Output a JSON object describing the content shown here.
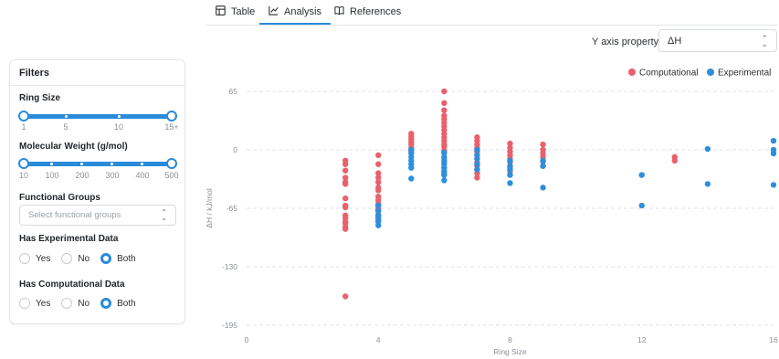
{
  "tabs": [
    {
      "label": "Table",
      "icon": "table-icon",
      "active": false
    },
    {
      "label": "Analysis",
      "icon": "chart-icon",
      "active": true
    },
    {
      "label": "References",
      "icon": "book-icon",
      "active": false
    }
  ],
  "y_axis_select": {
    "label": "Y axis property:",
    "value": "ΔH"
  },
  "filters": {
    "title": "Filters",
    "ring_size": {
      "label": "Ring Size",
      "ticks": [
        "1",
        "5",
        "10",
        "15+"
      ],
      "range": [
        1,
        15
      ]
    },
    "molecular_weight": {
      "label": "Molecular Weight (g/mol)",
      "ticks": [
        "10",
        "100",
        "200",
        "300",
        "400",
        "500"
      ],
      "range": [
        10,
        500
      ]
    },
    "functional_groups": {
      "label": "Functional Groups",
      "placeholder": "Select functional groups"
    },
    "has_experimental": {
      "label": "Has Experimental Data",
      "options": [
        "Yes",
        "No",
        "Both"
      ],
      "selected": "Both"
    },
    "has_computational": {
      "label": "Has Computational Data",
      "options": [
        "Yes",
        "No",
        "Both"
      ],
      "selected": "Both"
    }
  },
  "colors": {
    "accent": "#2a8bd8",
    "computational": "#e8616b",
    "experimental": "#2e8fdc"
  },
  "chart_data": {
    "type": "scatter",
    "xlabel": "Ring Size",
    "ylabel": "ΔH / kJ/mol",
    "xlim": [
      0,
      16
    ],
    "ylim": [
      -195,
      65
    ],
    "xticks": [
      0,
      4,
      8,
      12,
      16
    ],
    "yticks": [
      65,
      0,
      -65,
      -130,
      -195
    ],
    "grid": "horizontal dashed",
    "legend": "top-right",
    "series": [
      {
        "name": "Computational",
        "points": [
          [
            3,
            -12
          ],
          [
            3,
            -16
          ],
          [
            3,
            -23
          ],
          [
            3,
            -31
          ],
          [
            3,
            -36
          ],
          [
            3,
            -38
          ],
          [
            3,
            -54
          ],
          [
            3,
            -62
          ],
          [
            3,
            -64
          ],
          [
            3,
            -73
          ],
          [
            3,
            -76
          ],
          [
            3,
            -80
          ],
          [
            3,
            -82
          ],
          [
            3,
            -86
          ],
          [
            3,
            -88
          ],
          [
            3,
            -163
          ],
          [
            4,
            -6
          ],
          [
            4,
            -16
          ],
          [
            4,
            -26
          ],
          [
            4,
            -31
          ],
          [
            4,
            -36
          ],
          [
            4,
            -42
          ],
          [
            4,
            -45
          ],
          [
            4,
            -52
          ],
          [
            4,
            -56
          ],
          [
            4,
            -60
          ],
          [
            4,
            -63
          ],
          [
            4,
            -66
          ],
          [
            4,
            -68
          ],
          [
            4,
            -72
          ],
          [
            4,
            -75
          ],
          [
            4,
            -78
          ],
          [
            5,
            -2
          ],
          [
            5,
            2
          ],
          [
            5,
            6
          ],
          [
            5,
            9
          ],
          [
            5,
            12
          ],
          [
            5,
            15
          ],
          [
            5,
            18
          ],
          [
            6,
            65
          ],
          [
            6,
            52
          ],
          [
            6,
            44
          ],
          [
            6,
            38
          ],
          [
            6,
            34
          ],
          [
            6,
            30
          ],
          [
            6,
            26
          ],
          [
            6,
            22
          ],
          [
            6,
            18
          ],
          [
            6,
            14
          ],
          [
            6,
            10
          ],
          [
            6,
            6
          ],
          [
            6,
            3
          ],
          [
            6,
            -1
          ],
          [
            6,
            -4
          ],
          [
            6,
            -9
          ],
          [
            6,
            -14
          ],
          [
            6,
            -20
          ],
          [
            6,
            -26
          ],
          [
            7,
            14
          ],
          [
            7,
            10
          ],
          [
            7,
            6
          ],
          [
            7,
            2
          ],
          [
            7,
            -2
          ],
          [
            7,
            -6
          ],
          [
            7,
            -10
          ],
          [
            7,
            -14
          ],
          [
            7,
            -18
          ],
          [
            7,
            -22
          ],
          [
            7,
            -26
          ],
          [
            7,
            -31
          ],
          [
            8,
            7
          ],
          [
            8,
            2
          ],
          [
            8,
            -2
          ],
          [
            8,
            -6
          ],
          [
            8,
            -10
          ],
          [
            8,
            -14
          ],
          [
            8,
            -19
          ],
          [
            8,
            -24
          ],
          [
            9,
            6
          ],
          [
            9,
            0
          ],
          [
            9,
            -4
          ],
          [
            9,
            -8
          ],
          [
            9,
            -13
          ],
          [
            9,
            -18
          ],
          [
            13,
            -8
          ],
          [
            13,
            -12
          ]
        ]
      },
      {
        "name": "Experimental",
        "points": [
          [
            4,
            -62
          ],
          [
            4,
            -68
          ],
          [
            4,
            -73
          ],
          [
            4,
            -76
          ],
          [
            4,
            -80
          ],
          [
            4,
            -84
          ],
          [
            5,
            0
          ],
          [
            5,
            -4
          ],
          [
            5,
            -8
          ],
          [
            5,
            -12
          ],
          [
            5,
            -16
          ],
          [
            5,
            -20
          ],
          [
            5,
            -32
          ],
          [
            6,
            -3
          ],
          [
            6,
            -8
          ],
          [
            6,
            -12
          ],
          [
            6,
            -16
          ],
          [
            6,
            -20
          ],
          [
            6,
            -24
          ],
          [
            6,
            -28
          ],
          [
            6,
            -34
          ],
          [
            7,
            0
          ],
          [
            7,
            -6
          ],
          [
            7,
            -10
          ],
          [
            7,
            -16
          ],
          [
            7,
            -22
          ],
          [
            8,
            -12
          ],
          [
            8,
            -18
          ],
          [
            8,
            -22
          ],
          [
            8,
            -28
          ],
          [
            8,
            -37
          ],
          [
            9,
            -12
          ],
          [
            9,
            -18
          ],
          [
            9,
            -42
          ],
          [
            12,
            -28
          ],
          [
            12,
            -62
          ],
          [
            14,
            1
          ],
          [
            14,
            -38
          ],
          [
            16,
            10
          ],
          [
            16,
            0
          ],
          [
            16,
            -4
          ],
          [
            16,
            -39
          ]
        ]
      }
    ]
  }
}
